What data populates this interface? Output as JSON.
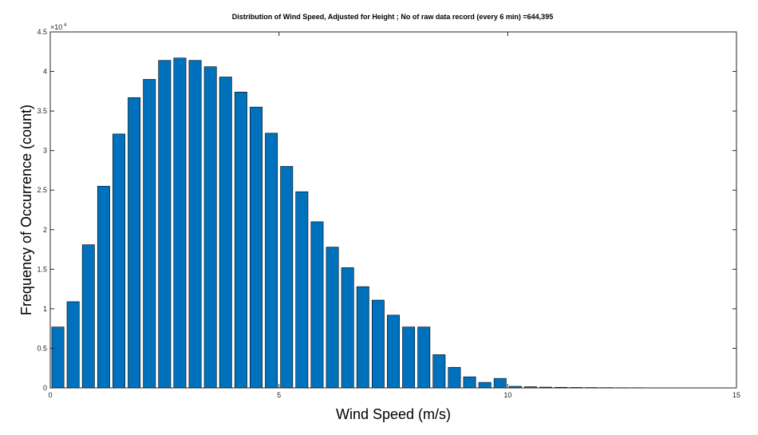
{
  "chart_data": {
    "type": "bar",
    "title": "Distribution of Wind Speed, Adjusted for Height ; No of raw data record (every 6 min) =644,395",
    "xlabel": "Wind Speed (m/s)",
    "ylabel": "Frequency of Occurrence (count)",
    "xlim": [
      0,
      15
    ],
    "ylim": [
      0,
      45000
    ],
    "bin_width": 0.3333,
    "y_exponent_base": "×10",
    "y_exponent_power": "4",
    "x_ticks": [
      0,
      5,
      10,
      15
    ],
    "y_ticks": [
      0,
      5000,
      10000,
      15000,
      20000,
      25000,
      30000,
      35000,
      40000,
      45000
    ],
    "x_tick_labels": [
      "0",
      "5",
      "10",
      "15"
    ],
    "y_tick_labels": [
      "0",
      "0.5",
      "1",
      "1.5",
      "2",
      "2.5",
      "3",
      "3.5",
      "4",
      "4.5"
    ],
    "x": [
      0.1667,
      0.5,
      0.8333,
      1.1667,
      1.5,
      1.8333,
      2.1667,
      2.5,
      2.8333,
      3.1667,
      3.5,
      3.8333,
      4.1667,
      4.5,
      4.8333,
      5.1667,
      5.5,
      5.8333,
      6.1667,
      6.5,
      6.8333,
      7.1667,
      7.5,
      7.8333,
      8.1667,
      8.5,
      8.8333,
      9.1667,
      9.5,
      9.8333,
      10.1667,
      10.5,
      10.8333,
      11.1667,
      11.5,
      11.8333,
      12.1667,
      12.5,
      12.8333,
      13.1667,
      13.5,
      13.8333,
      14.1667,
      14.5,
      14.8333
    ],
    "values": [
      7700,
      10900,
      18100,
      25500,
      32100,
      36700,
      39000,
      41400,
      41700,
      41400,
      40600,
      39300,
      37400,
      35500,
      32200,
      28000,
      24800,
      21000,
      17800,
      15200,
      12800,
      11100,
      9200,
      7700,
      7700,
      4200,
      2600,
      1400,
      700,
      1200,
      200,
      150,
      100,
      80,
      60,
      50,
      40,
      30,
      30,
      20,
      20,
      20,
      10,
      10,
      10
    ],
    "bar_color": "#0072BD",
    "bar_edge_color": "#000000",
    "grid": false,
    "box": true
  }
}
